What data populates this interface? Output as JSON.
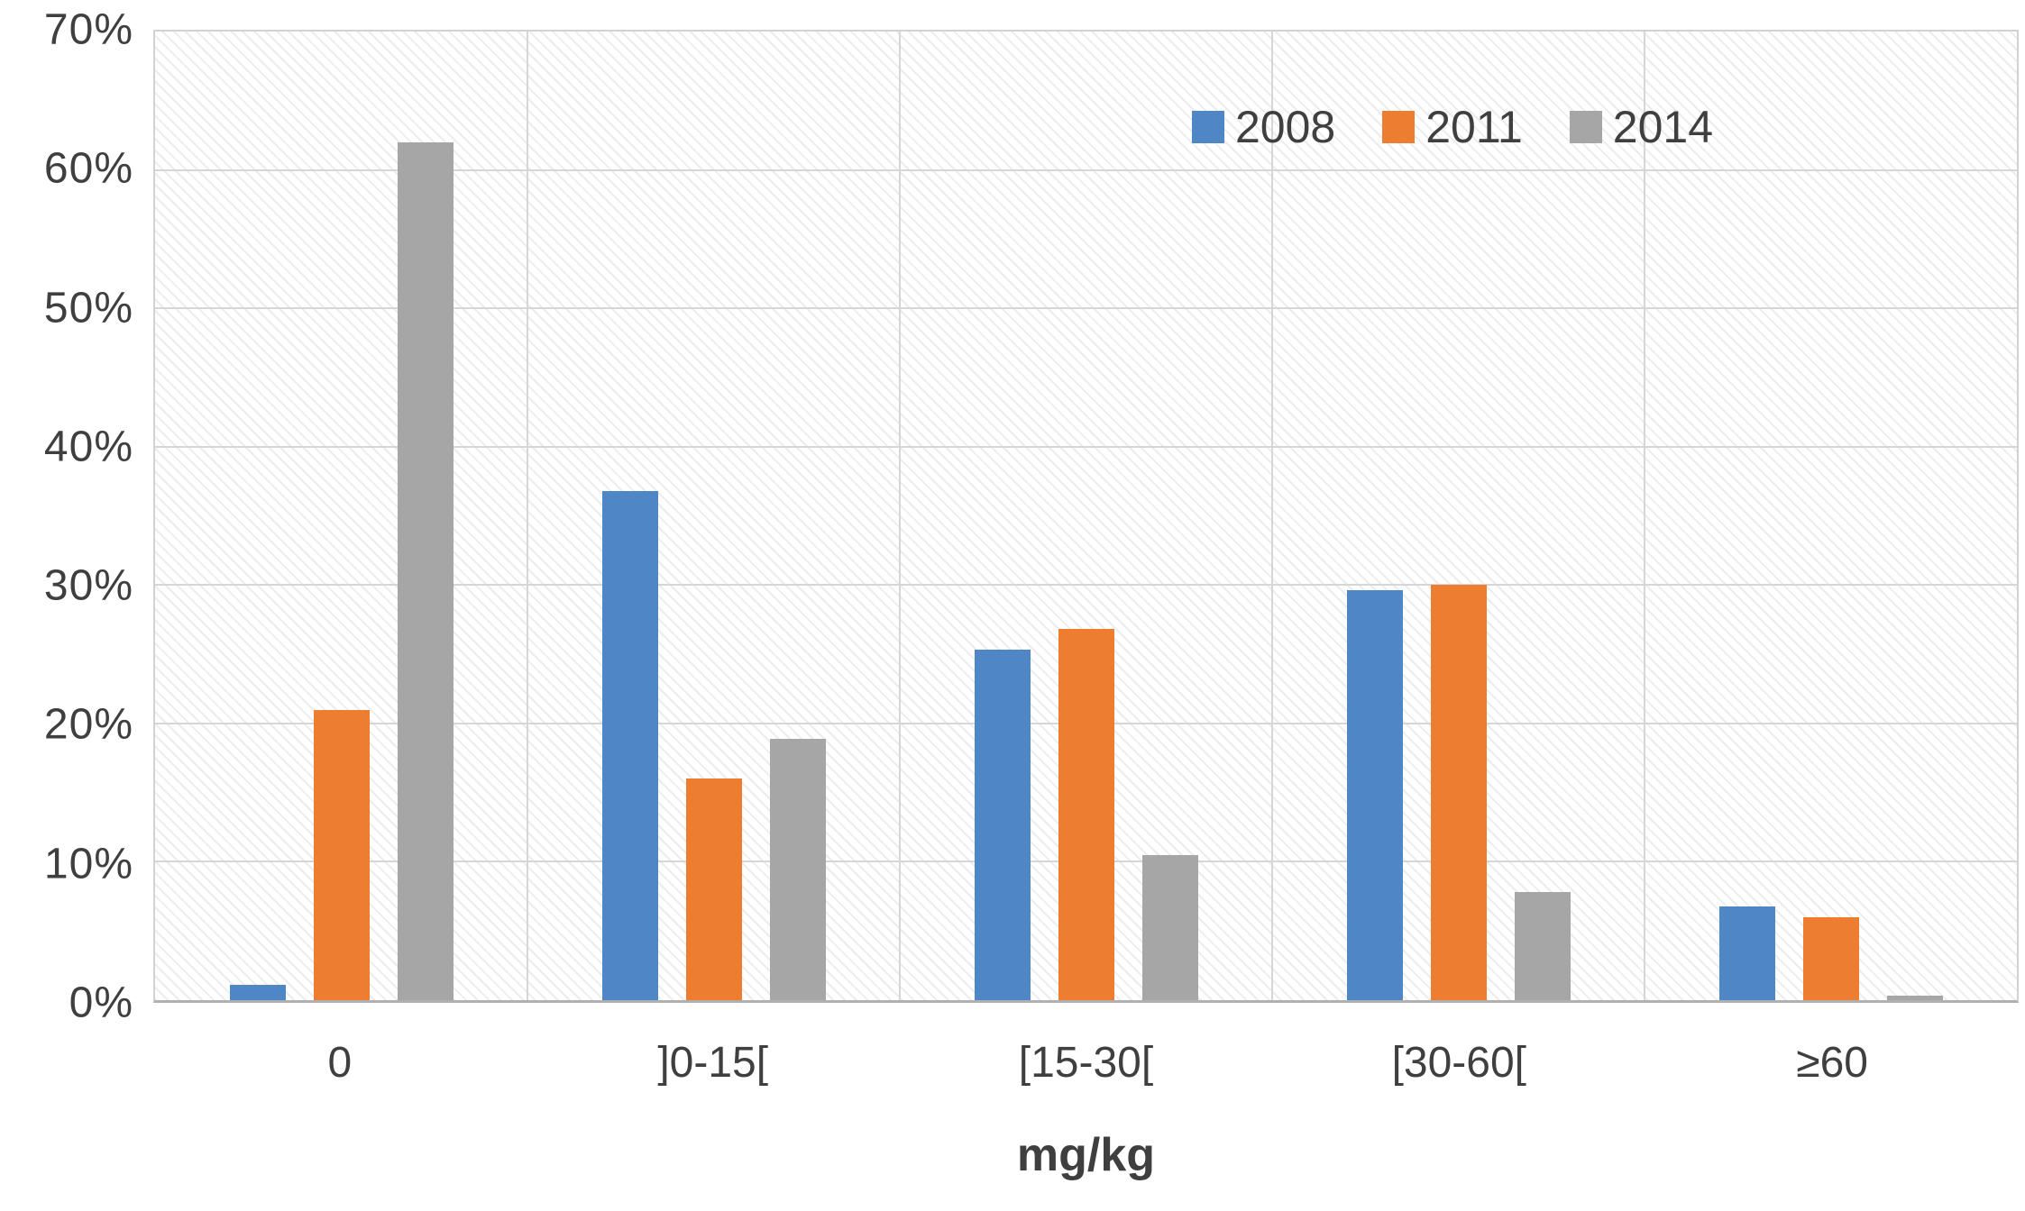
{
  "chart_data": {
    "type": "bar",
    "title": "",
    "categories": [
      "0",
      "]0-15[",
      "[15-30[",
      "[30-60[",
      "≥60"
    ],
    "series": [
      {
        "name": "2008",
        "color": "#4E86C6",
        "values": [
          1.1,
          36.8,
          25.3,
          29.6,
          6.8
        ]
      },
      {
        "name": "2011",
        "color": "#ED7D31",
        "values": [
          21.0,
          16.0,
          26.8,
          30.0,
          6.0
        ]
      },
      {
        "name": "2014",
        "color": "#A6A6A6",
        "values": [
          62.0,
          18.9,
          10.5,
          7.8,
          0.3
        ]
      }
    ],
    "xlabel": "mg/kg",
    "ylabel": "",
    "ylim": [
      0,
      70
    ],
    "ytick_step": 10,
    "ytick_labels": [
      "0%",
      "10%",
      "20%",
      "30%",
      "40%",
      "50%",
      "60%",
      "70%"
    ],
    "grid": true,
    "legend_position": "top-right",
    "plot_background": "diagonal-hatch"
  },
  "colors": {
    "gridline": "#d6d6d6",
    "plot_border": "#d2d2d2",
    "baseline": "#b0b0b0",
    "axis_text": "#3f3f3f",
    "background": "#ffffff"
  }
}
